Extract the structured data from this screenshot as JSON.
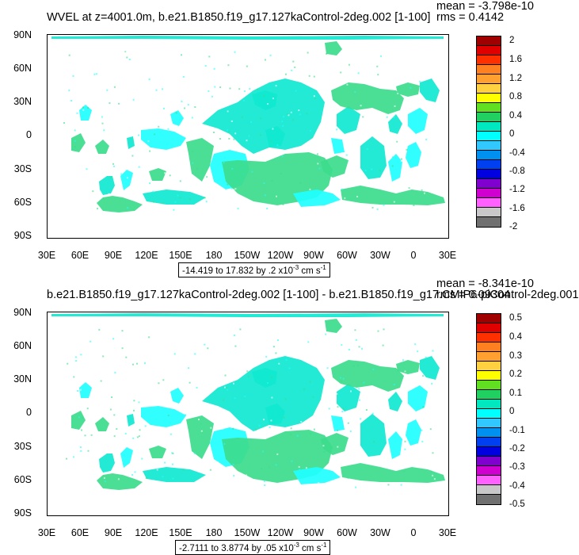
{
  "panels": [
    {
      "title": "WVEL at z=4001.0m, b.e21.B1850.f19_g17.127kaControl-2deg.002 [1-100]",
      "mean": "mean = -3.798e-10",
      "rms": "rms = 0.4142",
      "range_prefix": "-14.419 to 17.832 by .2 x10",
      "range_exp": "-3",
      "range_suffix": " cm s",
      "range_unit_exp": "-1",
      "colorbar_labels": [
        "2",
        "1.6",
        "1.2",
        "0.8",
        "0.4",
        "0",
        "-0.4",
        "-0.8",
        "-1.2",
        "-1.6",
        "-2"
      ]
    },
    {
      "title": "b.e21.B1850.f19_g17.127kaControl-2deg.002 [1-100] - b.e21.B1850.f19_g17.CMIP6-piControl-2deg.001",
      "mean": "mean = -8.341e-10",
      "rms": "rms = 0.09304",
      "range_prefix": "-2.7111 to 3.8774 by .05 x10",
      "range_exp": "-3",
      "range_suffix": " cm s",
      "range_unit_exp": "-1",
      "colorbar_labels": [
        "0.5",
        "0.4",
        "0.3",
        "0.2",
        "0.1",
        "0",
        "-0.1",
        "-0.2",
        "-0.3",
        "-0.4",
        "-0.5"
      ]
    }
  ],
  "lat_labels": [
    "90N",
    "60N",
    "30N",
    "0",
    "30S",
    "60S",
    "90S"
  ],
  "lon_labels": [
    "30E",
    "60E",
    "90E",
    "120E",
    "150E",
    "180",
    "150W",
    "120W",
    "90W",
    "60W",
    "30W",
    "0",
    "30E"
  ],
  "colorbar_colors": [
    "#a00000",
    "#e00000",
    "#ff3000",
    "#ff8020",
    "#ffa030",
    "#ffd040",
    "#ffff00",
    "#60e020",
    "#20d060",
    "#00e8c0",
    "#00ffff",
    "#30c8ff",
    "#0090f0",
    "#0040f0",
    "#0000e0",
    "#8000d0",
    "#d000d0",
    "#ff60ff",
    "#c8c8c8",
    "#707070"
  ],
  "colors": {
    "ocean_main": "#3cdc8c",
    "ocean_alt": "#10e8d0",
    "ocean_cyan": "#20ffff"
  }
}
